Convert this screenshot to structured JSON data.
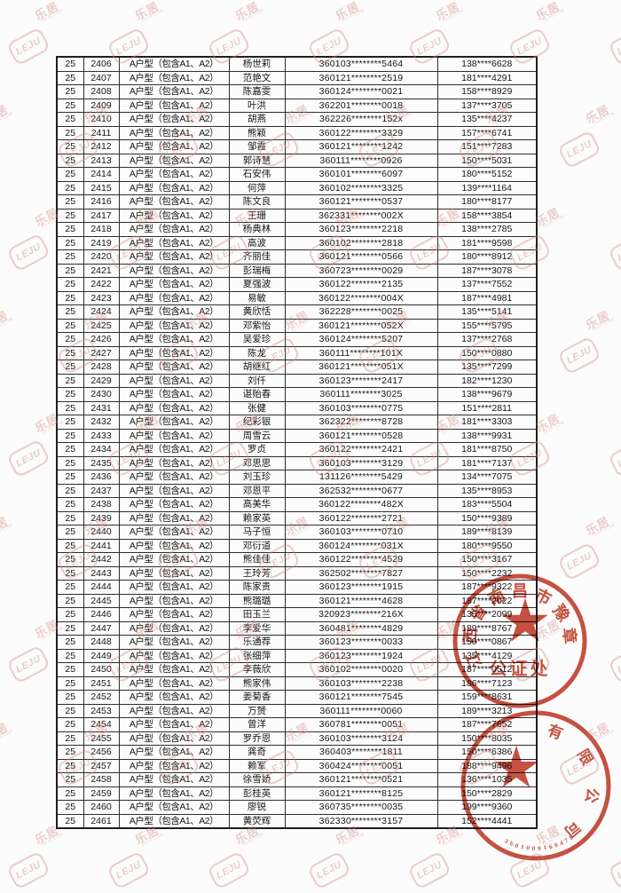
{
  "page": {
    "background": "#fcfcfc",
    "description_visible_text_only": true
  },
  "watermark": {
    "logo_text": "LEJU",
    "brand_text": "乐居",
    "sub_text": "LEJU.COM",
    "color": "#ce847c"
  },
  "seals": {
    "color": "#bf3a28",
    "notary": {
      "arc_text": "江西省南昌市豫章",
      "center_text": "公证处"
    },
    "company": {
      "arc_text": "有限公司",
      "serial": "3601000160478"
    }
  },
  "table": {
    "columns": [
      "group",
      "sequence",
      "unit_type",
      "name",
      "id_number",
      "phone"
    ],
    "rows": [
      [
        "25",
        "2406",
        "A户型（包含A1、A2）",
        "杨世莉",
        "360103********5464",
        "138****6628"
      ],
      [
        "25",
        "2407",
        "A户型（包含A1、A2）",
        "范艳文",
        "360121********2519",
        "181****4291"
      ],
      [
        "25",
        "2408",
        "A户型（包含A1、A2）",
        "陈嘉雯",
        "360124********0021",
        "158****8929"
      ],
      [
        "25",
        "2409",
        "A户型（包含A1、A2）",
        "叶洪",
        "362201********0018",
        "137****3705"
      ],
      [
        "25",
        "2410",
        "A户型（包含A1、A2）",
        "胡燕",
        "362226********152x",
        "135****4237"
      ],
      [
        "25",
        "2411",
        "A户型（包含A1、A2）",
        "熊颖",
        "360122********3329",
        "157****6741"
      ],
      [
        "25",
        "2412",
        "A户型（包含A1、A2）",
        "邹霞",
        "360121********1242",
        "151****7283"
      ],
      [
        "25",
        "2413",
        "A户型（包含A1、A2）",
        "郭诗慧",
        "360111********0926",
        "150****5031"
      ],
      [
        "25",
        "2414",
        "A户型（包含A1、A2）",
        "石安伟",
        "360101********6097",
        "180****5152"
      ],
      [
        "25",
        "2415",
        "A户型（包含A1、A2）",
        "何萍",
        "360102********3325",
        "139****1164"
      ],
      [
        "25",
        "2416",
        "A户型（包含A1、A2）",
        "陈文良",
        "360121********0537",
        "180****8177"
      ],
      [
        "25",
        "2417",
        "A户型（包含A1、A2）",
        "王珊",
        "362331********002X",
        "158****3854"
      ],
      [
        "25",
        "2418",
        "A户型（包含A1、A2）",
        "杨典林",
        "360123********2218",
        "138****2785"
      ],
      [
        "25",
        "2419",
        "A户型（包含A1、A2）",
        "高波",
        "360102********2818",
        "181****9598"
      ],
      [
        "25",
        "2420",
        "A户型（包含A1、A2）",
        "齐丽佳",
        "360121********0566",
        "180****8912"
      ],
      [
        "25",
        "2421",
        "A户型（包含A1、A2）",
        "彭瑞梅",
        "360723********0029",
        "187****3078"
      ],
      [
        "25",
        "2422",
        "A户型（包含A1、A2）",
        "夏强波",
        "360122********2135",
        "137****7552"
      ],
      [
        "25",
        "2423",
        "A户型（包含A1、A2）",
        "易敏",
        "360122********004X",
        "187****4981"
      ],
      [
        "25",
        "2424",
        "A户型（包含A1、A2）",
        "黄欣恬",
        "362228********0025",
        "135****5141"
      ],
      [
        "25",
        "2425",
        "A户型（包含A1、A2）",
        "邓紫怡",
        "360121********052X",
        "155****5795"
      ],
      [
        "25",
        "2426",
        "A户型（包含A1、A2）",
        "吴爱珍",
        "360124********5207",
        "137****2768"
      ],
      [
        "25",
        "2427",
        "A户型（包含A1、A2）",
        "陈龙",
        "360111********101X",
        "150****0880"
      ],
      [
        "25",
        "2428",
        "A户型（包含A1、A2）",
        "胡继红",
        "360121********051X",
        "135****7299"
      ],
      [
        "25",
        "2429",
        "A户型（包含A1、A2）",
        "刘仟",
        "360123********2417",
        "182****1230"
      ],
      [
        "25",
        "2430",
        "A户型（包含A1、A2）",
        "谌贻春",
        "360111********3025",
        "138****9679"
      ],
      [
        "25",
        "2431",
        "A户型（包含A1、A2）",
        "张健",
        "360103********0775",
        "151****2811"
      ],
      [
        "25",
        "2432",
        "A户型（包含A1、A2）",
        "纪彩银",
        "362322********8728",
        "181****3303"
      ],
      [
        "25",
        "2433",
        "A户型（包含A1、A2）",
        "周雪云",
        "360121********0528",
        "138****9931"
      ],
      [
        "25",
        "2434",
        "A户型（包含A1、A2）",
        "罗贞",
        "360122********2421",
        "181****8750"
      ],
      [
        "25",
        "2435",
        "A户型（包含A1、A2）",
        "邓思思",
        "360103********3129",
        "181****7137"
      ],
      [
        "25",
        "2436",
        "A户型（包含A1、A2）",
        "刘玉珍",
        "131126********5429",
        "134****7075"
      ],
      [
        "25",
        "2437",
        "A户型（包含A1、A2）",
        "邓恩平",
        "362532********0677",
        "135****8953"
      ],
      [
        "25",
        "2438",
        "A户型（包含A1、A2）",
        "高美华",
        "360122********482X",
        "183****5504"
      ],
      [
        "25",
        "2439",
        "A户型（包含A1、A2）",
        "赖家英",
        "360122********2721",
        "150****9389"
      ],
      [
        "25",
        "2440",
        "A户型（包含A1、A2）",
        "马子恒",
        "360103********0710",
        "189****8139"
      ],
      [
        "25",
        "2441",
        "A户型（包含A1、A2）",
        "邓衍道",
        "360124********031X",
        "180****9550"
      ],
      [
        "25",
        "2442",
        "A户型（包含A1、A2）",
        "熊佳佳",
        "360122********4529",
        "150****3167"
      ],
      [
        "25",
        "2443",
        "A户型（包含A1、A2）",
        "王玲芳",
        "362502********7827",
        "150****2232"
      ],
      [
        "25",
        "2444",
        "A户型（包含A1、A2）",
        "陈家贵",
        "360123********1915",
        "187****9322"
      ],
      [
        "25",
        "2445",
        "A户型（包含A1、A2）",
        "熊璐璐",
        "360121********4628",
        "187****2022"
      ],
      [
        "25",
        "2446",
        "A户型（包含A1、A2）",
        "田玉兰",
        "320923********216X",
        "135****2099"
      ],
      [
        "25",
        "2447",
        "A户型（包含A1、A2）",
        "李爱华",
        "360481********4829",
        "189****8767"
      ],
      [
        "25",
        "2448",
        "A户型（包含A1、A2）",
        "乐通荐",
        "360123********0033",
        "150****0867"
      ],
      [
        "25",
        "2449",
        "A户型（包含A1、A2）",
        "张细萍",
        "360123********1924",
        "135****4129"
      ],
      [
        "25",
        "2450",
        "A户型（包含A1、A2）",
        "李薇欣",
        "360102********0020",
        "187****0512"
      ],
      [
        "25",
        "2451",
        "A户型（包含A1、A2）",
        "熊家伟",
        "360103********2238",
        "186****7123"
      ],
      [
        "25",
        "2452",
        "A户型（包含A1、A2）",
        "姜菊香",
        "360121********7545",
        "159****8631"
      ],
      [
        "25",
        "2453",
        "A户型（包含A1、A2）",
        "万赟",
        "360111********0060",
        "189****3213"
      ],
      [
        "25",
        "2454",
        "A户型（包含A1、A2）",
        "曾洋",
        "360781********0051",
        "187****7652"
      ],
      [
        "25",
        "2455",
        "A户型（包含A1、A2）",
        "罗乔恩",
        "360103********3124",
        "150****8035"
      ],
      [
        "25",
        "2456",
        "A户型（包含A1、A2）",
        "龚奇",
        "360403********1811",
        "150****6386"
      ],
      [
        "25",
        "2457",
        "A户型（包含A1、A2）",
        "赖军",
        "360424********0051",
        "188****9496"
      ],
      [
        "25",
        "2458",
        "A户型（包含A1、A2）",
        "徐雪娇",
        "360121********0521",
        "136****1035"
      ],
      [
        "25",
        "2459",
        "A户型（包含A1、A2）",
        "彭桂英",
        "360121********8125",
        "150****2829"
      ],
      [
        "25",
        "2460",
        "A户型（包含A1、A2）",
        "廖锐",
        "360735********0035",
        "199****9360"
      ],
      [
        "25",
        "2461",
        "A户型（包含A1、A2）",
        "黄荧辉",
        "362330********3157",
        "152****4441"
      ]
    ]
  }
}
